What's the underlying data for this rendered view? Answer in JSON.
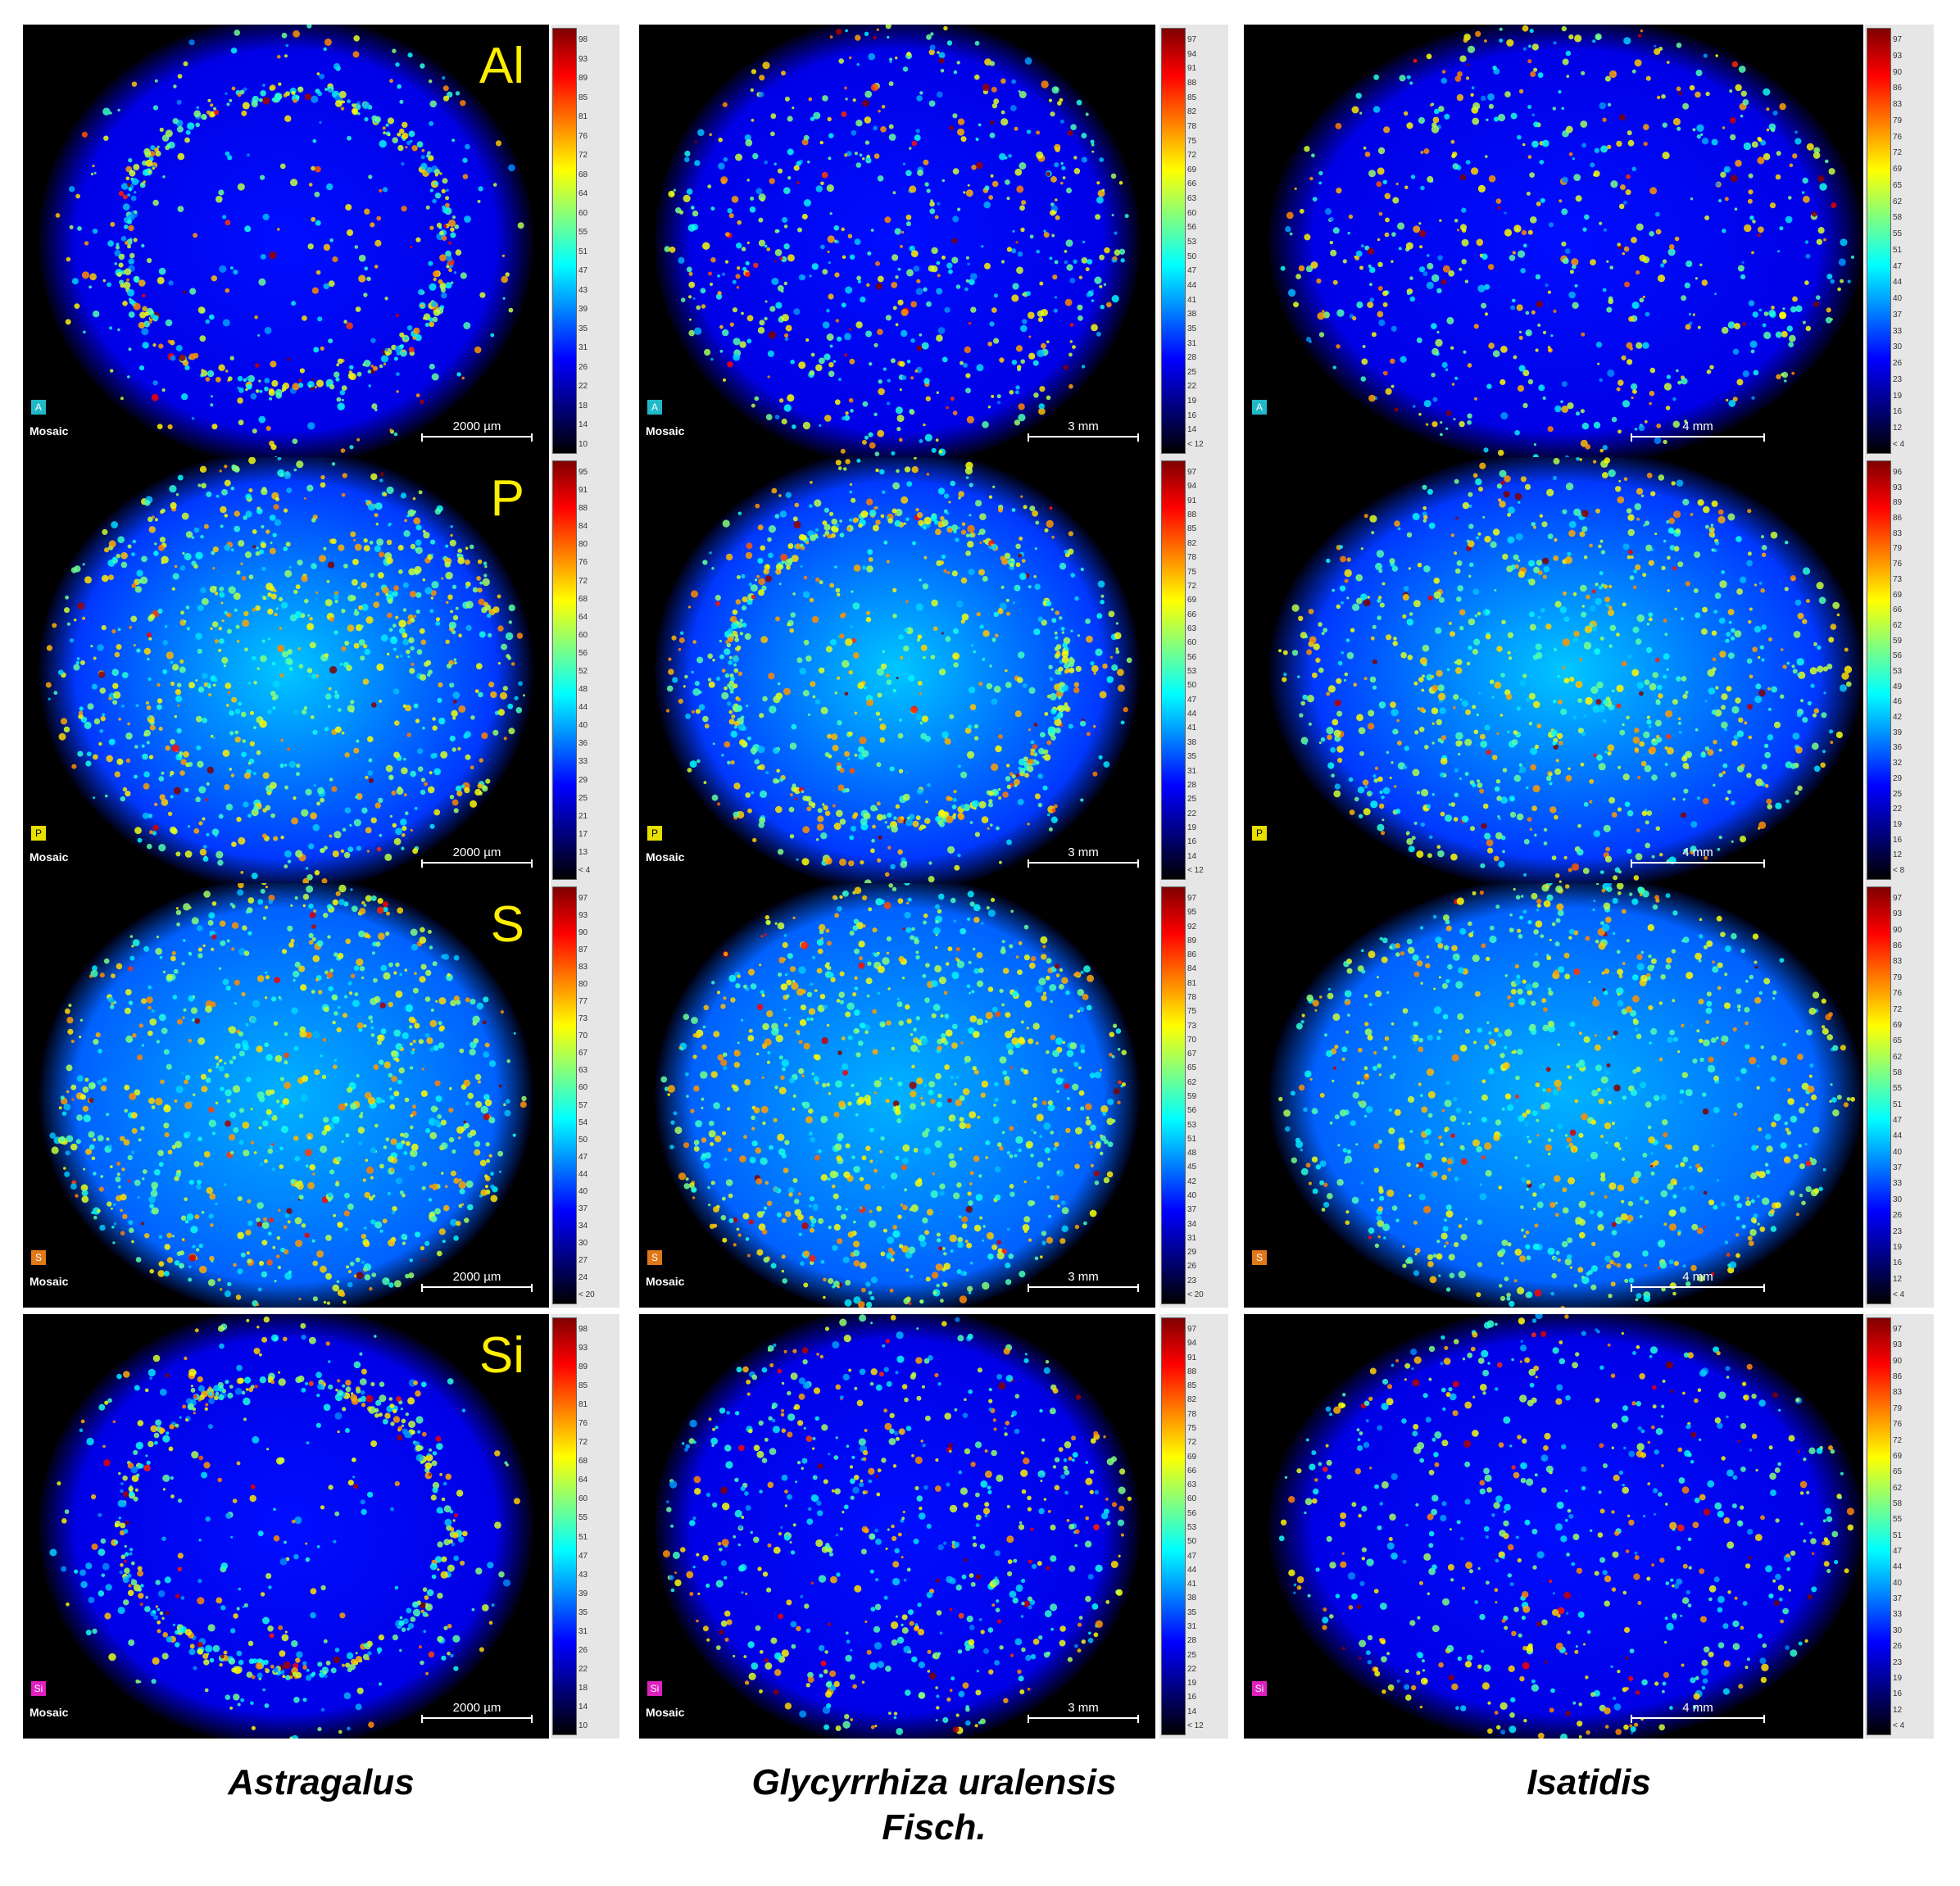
{
  "figure": {
    "mosaic_label": "Mosaic",
    "element_labels": [
      "Al",
      "P",
      "S",
      "Si"
    ],
    "element_badges": [
      "A",
      "P",
      "S",
      "Si"
    ],
    "scale_bars": [
      "2000 µm",
      "3 mm",
      "4 mm"
    ],
    "captions": [
      "Astragalus",
      "Glycyrrhiza uralensis",
      "Fisch.",
      "Isatidis"
    ],
    "badge_colors": [
      "#21b8c8",
      "#e8e000",
      "#e07818",
      "#e020c0"
    ],
    "colormap": "jet",
    "colorbars": [
      [
        [
          "98",
          "93",
          "89",
          "85",
          "81",
          "76",
          "72",
          "68",
          "64",
          "60",
          "55",
          "51",
          "47",
          "43",
          "39",
          "35",
          "31",
          "26",
          "22",
          "18",
          "14",
          "10"
        ],
        [
          "97",
          "94",
          "91",
          "88",
          "85",
          "82",
          "78",
          "75",
          "72",
          "69",
          "66",
          "63",
          "60",
          "56",
          "53",
          "50",
          "47",
          "44",
          "41",
          "38",
          "35",
          "31",
          "28",
          "25",
          "22",
          "19",
          "16",
          "14",
          "< 12"
        ],
        [
          "97",
          "93",
          "90",
          "86",
          "83",
          "79",
          "76",
          "72",
          "69",
          "65",
          "62",
          "58",
          "55",
          "51",
          "47",
          "44",
          "40",
          "37",
          "33",
          "30",
          "26",
          "23",
          "19",
          "16",
          "12",
          "< 4"
        ]
      ],
      [
        [
          "95",
          "91",
          "88",
          "84",
          "80",
          "76",
          "72",
          "68",
          "64",
          "60",
          "56",
          "52",
          "48",
          "44",
          "40",
          "36",
          "33",
          "29",
          "25",
          "21",
          "17",
          "13",
          "< 4"
        ],
        [
          "97",
          "94",
          "91",
          "88",
          "85",
          "82",
          "78",
          "75",
          "72",
          "69",
          "66",
          "63",
          "60",
          "56",
          "53",
          "50",
          "47",
          "44",
          "41",
          "38",
          "35",
          "31",
          "28",
          "25",
          "22",
          "19",
          "16",
          "14",
          "< 12"
        ],
        [
          "96",
          "93",
          "89",
          "86",
          "83",
          "79",
          "76",
          "73",
          "69",
          "66",
          "62",
          "59",
          "56",
          "53",
          "49",
          "46",
          "42",
          "39",
          "36",
          "32",
          "29",
          "25",
          "22",
          "19",
          "16",
          "12",
          "< 8"
        ]
      ],
      [
        [
          "97",
          "93",
          "90",
          "87",
          "83",
          "80",
          "77",
          "73",
          "70",
          "67",
          "63",
          "60",
          "57",
          "54",
          "50",
          "47",
          "44",
          "40",
          "37",
          "34",
          "30",
          "27",
          "24",
          "< 20"
        ],
        [
          "97",
          "95",
          "92",
          "89",
          "86",
          "84",
          "81",
          "78",
          "75",
          "73",
          "70",
          "67",
          "65",
          "62",
          "59",
          "56",
          "53",
          "51",
          "48",
          "45",
          "42",
          "40",
          "37",
          "34",
          "31",
          "29",
          "26",
          "23",
          "< 20"
        ],
        [
          "97",
          "93",
          "90",
          "86",
          "83",
          "79",
          "76",
          "72",
          "69",
          "65",
          "62",
          "58",
          "55",
          "51",
          "47",
          "44",
          "40",
          "37",
          "33",
          "30",
          "26",
          "23",
          "19",
          "16",
          "12",
          "< 4"
        ]
      ],
      [
        [
          "98",
          "93",
          "89",
          "85",
          "81",
          "76",
          "72",
          "68",
          "64",
          "60",
          "55",
          "51",
          "47",
          "43",
          "39",
          "35",
          "31",
          "26",
          "22",
          "18",
          "14",
          "10"
        ],
        [
          "97",
          "94",
          "91",
          "88",
          "85",
          "82",
          "78",
          "75",
          "72",
          "69",
          "66",
          "63",
          "60",
          "56",
          "53",
          "50",
          "47",
          "44",
          "41",
          "38",
          "35",
          "31",
          "28",
          "25",
          "22",
          "19",
          "16",
          "14",
          "< 12"
        ],
        [
          "97",
          "93",
          "90",
          "86",
          "83",
          "79",
          "76",
          "72",
          "69",
          "65",
          "62",
          "58",
          "55",
          "51",
          "47",
          "44",
          "40",
          "37",
          "33",
          "30",
          "26",
          "23",
          "19",
          "16",
          "12",
          "< 4"
        ]
      ]
    ]
  }
}
